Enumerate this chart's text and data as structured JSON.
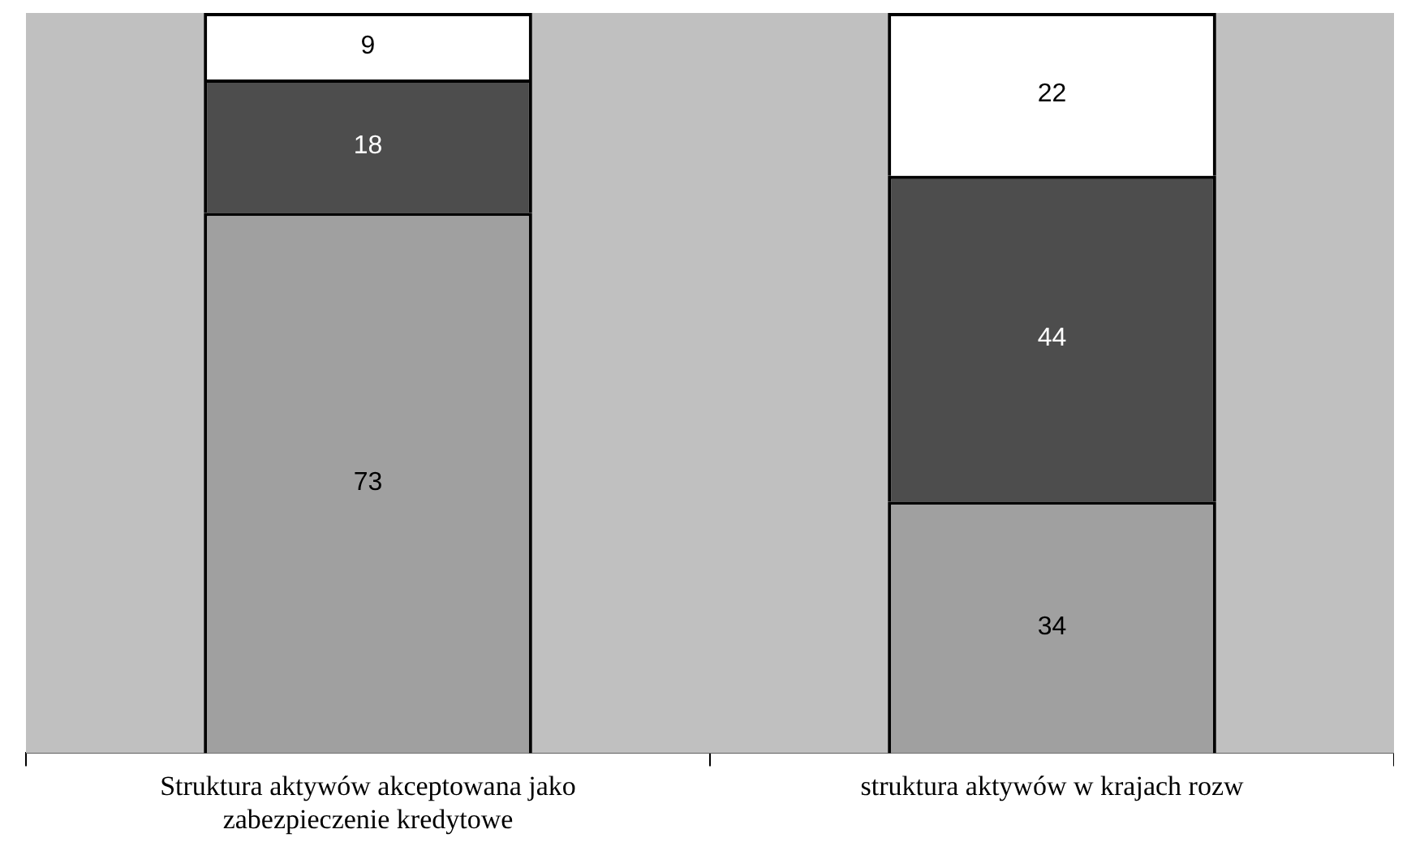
{
  "chart_data": {
    "type": "bar",
    "stacked": true,
    "categories": [
      "Struktura aktywów akceptowana jako zabezpieczenie kredytowe",
      "struktura aktywów w krajach rozw"
    ],
    "series": [
      {
        "color": "#a0a0a0",
        "values": [
          73,
          34
        ]
      },
      {
        "color": "#4d4d4d",
        "values": [
          18,
          44
        ]
      },
      {
        "color": "#ffffff",
        "values": [
          9,
          22
        ]
      }
    ],
    "ylim": [
      0,
      100
    ],
    "tick_labels": "x",
    "data_labels": true,
    "legend": false,
    "grid": false
  }
}
